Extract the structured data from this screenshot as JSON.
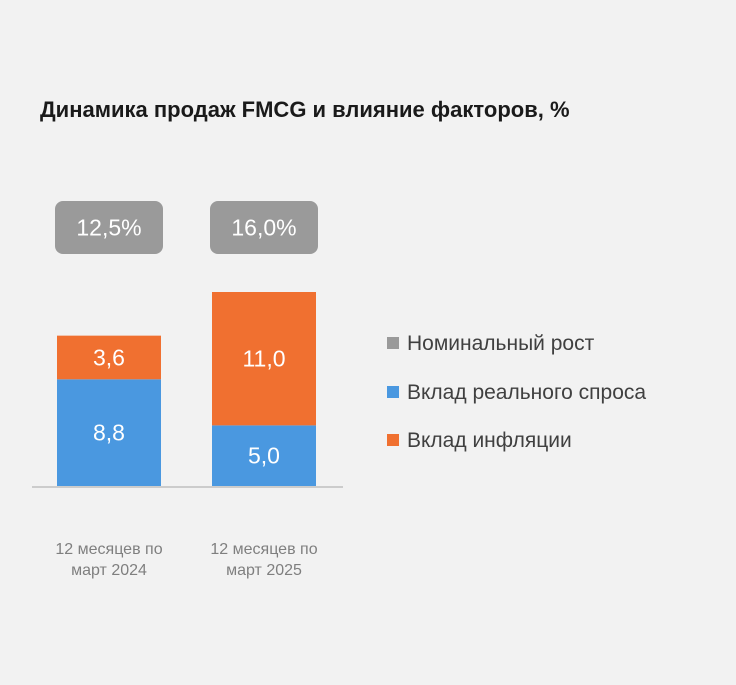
{
  "chart_data": {
    "type": "bar",
    "stacked": true,
    "title": "Динамика продаж FMCG и влияние факторов, %",
    "categories": [
      [
        "12 месяцев по",
        "март 2024"
      ],
      [
        "12 месяцев по",
        "март 2025"
      ]
    ],
    "series": [
      {
        "name": "Вклад реального спроса",
        "values": [
          8.8,
          5.0
        ],
        "labels": [
          "8,8",
          "5,0"
        ],
        "color": "#4a98e0"
      },
      {
        "name": "Вклад инфляции",
        "values": [
          3.6,
          11.0
        ],
        "labels": [
          "3,6",
          "11,0"
        ],
        "color": "#f07030"
      }
    ],
    "totals": {
      "name": "Номинальный рост",
      "values": [
        12.5,
        16.0
      ],
      "labels": [
        "12,5%",
        "16,0%"
      ],
      "color": "#9a9a9a"
    },
    "legend": [
      {
        "name": "Номинальный рост",
        "color": "#9a9a9a"
      },
      {
        "name": "Вклад реального спроса",
        "color": "#4a98e0"
      },
      {
        "name": "Вклад инфляции",
        "color": "#f07030"
      }
    ],
    "legend_position": "right",
    "ylim": [
      0,
      16.0
    ],
    "grid": false
  }
}
